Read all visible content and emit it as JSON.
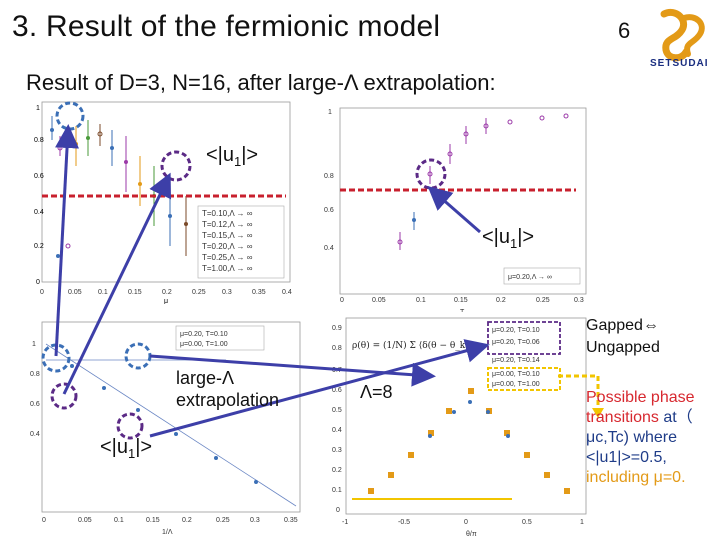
{
  "slide": {
    "title": "3. Result of the fermionic model",
    "page_number": "6",
    "logo_text": "SETSUDAI",
    "subtitle": "Result of D=3, N=16, after large-Λ extrapolation:"
  },
  "annotations": {
    "u1_top_left": "<|u",
    "u1_top_right": "<|u",
    "u1_bottom_left": "<|u",
    "u1_sub": "1",
    "u1_close": "|>",
    "large_lambda_1": "large-Λ",
    "large_lambda_2": "extrapolation",
    "lambda8": "Λ=8",
    "gapped": "Gapped⇔",
    "ungapped": "Ungapped"
  },
  "conclusion": {
    "line1": "Possible phase",
    "line2_a": "transitions",
    "line2_b": " at（",
    "line3": "μc,Tc) where",
    "line4": "<|u1|>=0.5,",
    "line5": "including μ=0."
  },
  "plots": {
    "top_left": {
      "xlabel": "μ",
      "ylabel": "<|u1|>",
      "xticks": [
        "0",
        "0.05",
        "0.1",
        "0.15",
        "0.2",
        "0.25",
        "0.3",
        "0.35",
        "0.4"
      ],
      "yticks": [
        "0",
        "0.2",
        "0.4",
        "0.6",
        "0.8",
        "1"
      ],
      "legend": [
        "T=0.10,Λ → ∞",
        "T=0.12,Λ → ∞",
        "T=0.15,Λ → ∞",
        "T=0.20,Λ → ∞",
        "T=0.25,Λ → ∞",
        "T=1.00,Λ → ∞"
      ]
    },
    "top_right": {
      "xlabel": "T",
      "ylabel": "<|u1|>",
      "xticks": [
        "0",
        "0.05",
        "0.1",
        "0.15",
        "0.2",
        "0.25",
        "0.3"
      ],
      "yticks": [
        "0.4",
        "0.6",
        "0.8",
        "1"
      ],
      "legend": [
        "μ=0.20,Λ → ∞"
      ]
    },
    "bottom_left": {
      "xlabel": "1/Λ",
      "ylabel": "<|u1|>",
      "xticks": [
        "0",
        "0.05",
        "0.1",
        "0.15",
        "0.2",
        "0.25",
        "0.3",
        "0.35"
      ],
      "yticks": [
        "0.4",
        "0.6",
        "0.8",
        "1"
      ],
      "legend": [
        "μ=0.20, T=0.10",
        "μ=0.00, T=1.00"
      ]
    },
    "bottom_right": {
      "xlabel": "θ/π",
      "ylabel": "ρ(θ)",
      "xticks": [
        "-1",
        "-0.5",
        "0",
        "0.5",
        "1"
      ],
      "yticks": [
        "0",
        "0.1",
        "0.2",
        "0.3",
        "0.4",
        "0.5",
        "0.6",
        "0.7",
        "0.8",
        "0.9"
      ],
      "legend": [
        "μ=0.20, T=0.10",
        "μ=0.20, T=0.06",
        "μ=0.20, T=0.14",
        "μ=0.00, T=0.10",
        "μ=0.00, T=1.00"
      ]
    }
  },
  "colors": {
    "red_dash": "#c8202e",
    "purple": "#5b2a86",
    "blue_circle": "#3b6fb6",
    "yellow": "#f2c500",
    "arrow": "#3d3fa8",
    "orange_text": "#e39a17",
    "red_text": "#d7282f",
    "navy_text": "#1f3c88"
  }
}
